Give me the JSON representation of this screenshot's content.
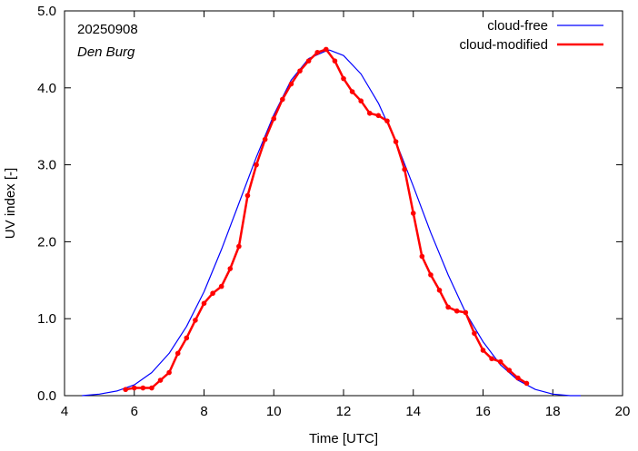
{
  "chart_data": {
    "type": "line",
    "title": "",
    "annotations": {
      "date": "20250908",
      "station": "Den Burg"
    },
    "xlabel": "Time  [UTC]",
    "ylabel": "UV index  [-]",
    "xlim": [
      4,
      20
    ],
    "ylim": [
      0,
      5
    ],
    "xticks": [
      4,
      6,
      8,
      10,
      12,
      14,
      16,
      18,
      20
    ],
    "yticks": [
      0,
      1,
      2,
      3,
      4,
      5
    ],
    "ytick_labels": [
      "0.0",
      "1.0",
      "2.0",
      "3.0",
      "4.0",
      "5.0"
    ],
    "grid": false,
    "legend_position": "top-right",
    "series": [
      {
        "name": "cloud-free",
        "color": "#0000ff",
        "markers": false,
        "x": [
          4.5,
          5.0,
          5.5,
          6.0,
          6.5,
          7.0,
          7.5,
          8.0,
          8.5,
          9.0,
          9.5,
          10.0,
          10.5,
          11.0,
          11.5,
          11.6,
          12.0,
          12.5,
          13.0,
          13.5,
          14.0,
          14.5,
          15.0,
          15.5,
          16.0,
          16.5,
          17.0,
          17.5,
          18.0,
          18.5,
          18.8
        ],
        "y": [
          0.0,
          0.02,
          0.06,
          0.14,
          0.3,
          0.55,
          0.9,
          1.35,
          1.9,
          2.5,
          3.1,
          3.65,
          4.1,
          4.38,
          4.48,
          4.49,
          4.42,
          4.18,
          3.8,
          3.3,
          2.72,
          2.12,
          1.57,
          1.08,
          0.7,
          0.4,
          0.2,
          0.08,
          0.02,
          0.0,
          0.0
        ]
      },
      {
        "name": "cloud-modified",
        "color": "#ff0000",
        "markers": true,
        "x": [
          5.75,
          6.0,
          6.25,
          6.5,
          6.75,
          7.0,
          7.25,
          7.5,
          7.75,
          8.0,
          8.25,
          8.5,
          8.75,
          9.0,
          9.25,
          9.5,
          9.75,
          10.0,
          10.25,
          10.5,
          10.75,
          11.0,
          11.25,
          11.5,
          11.75,
          12.0,
          12.25,
          12.5,
          12.75,
          13.0,
          13.25,
          13.5,
          13.75,
          14.0,
          14.25,
          14.5,
          14.75,
          15.0,
          15.25,
          15.5,
          15.75,
          16.0,
          16.25,
          16.5,
          16.75,
          17.0,
          17.25
        ],
        "y": [
          0.08,
          0.1,
          0.1,
          0.1,
          0.2,
          0.3,
          0.55,
          0.75,
          0.98,
          1.2,
          1.33,
          1.42,
          1.65,
          1.94,
          2.6,
          3.0,
          3.33,
          3.6,
          3.85,
          4.05,
          4.22,
          4.35,
          4.46,
          4.5,
          4.35,
          4.12,
          3.95,
          3.83,
          3.67,
          3.64,
          3.57,
          3.3,
          2.94,
          2.37,
          1.81,
          1.57,
          1.37,
          1.15,
          1.1,
          1.08,
          0.81,
          0.59,
          0.48,
          0.44,
          0.33,
          0.23,
          0.16
        ]
      }
    ]
  }
}
